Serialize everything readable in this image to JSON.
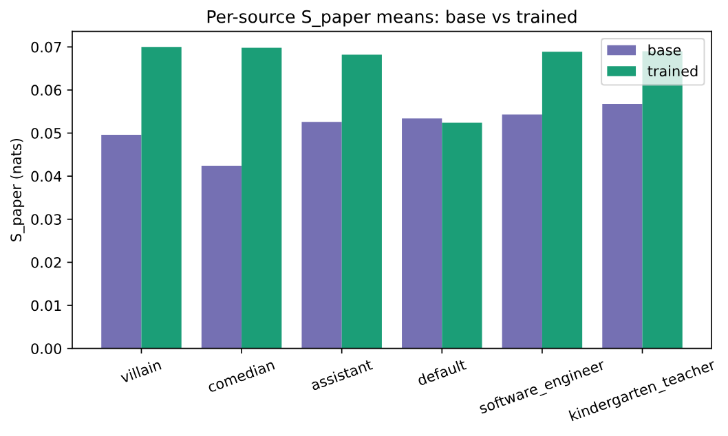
{
  "chart_data": {
    "type": "bar",
    "title": "Per-source S_paper means: base vs trained",
    "ylabel": "S_paper (nats)",
    "categories": [
      "villain",
      "comedian",
      "assistant",
      "default",
      "software_engineer",
      "kindergarten_teacher"
    ],
    "series": [
      {
        "name": "base",
        "color": "#7570b3",
        "values": [
          0.0496,
          0.0424,
          0.0526,
          0.0534,
          0.0543,
          0.0568
        ]
      },
      {
        "name": "trained",
        "color": "#1b9e77",
        "values": [
          0.07,
          0.0698,
          0.0682,
          0.0524,
          0.0689,
          0.069
        ]
      }
    ],
    "ylim": [
      0,
      0.0736
    ],
    "yticks": [
      {
        "value": 0,
        "label": "0.00"
      },
      0.01,
      0.02,
      0.03,
      0.04,
      0.05,
      0.06,
      0.07
    ],
    "grid": false,
    "legend": "top right"
  }
}
